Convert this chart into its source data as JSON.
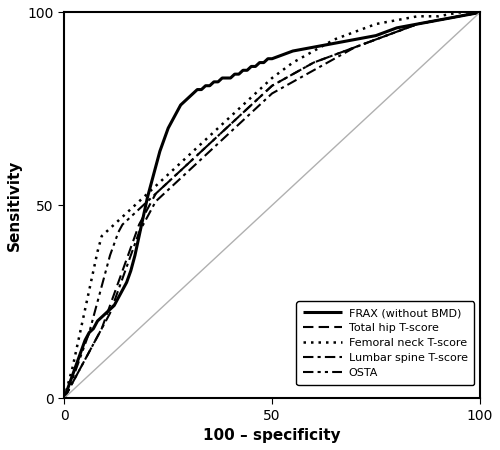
{
  "title": "",
  "xlabel": "100 – specificity",
  "ylabel": "Sensitivity",
  "xlim": [
    0,
    100
  ],
  "ylim": [
    0,
    100
  ],
  "xticks": [
    0,
    50,
    100
  ],
  "yticks": [
    0,
    50,
    100
  ],
  "background_color": "#ffffff",
  "curves": {
    "FRAX (without BMD)": {
      "style": "solid",
      "linewidth": 2.0,
      "color": "#000000",
      "points": [
        [
          0,
          0
        ],
        [
          1,
          3
        ],
        [
          2,
          6
        ],
        [
          3,
          9
        ],
        [
          4,
          12
        ],
        [
          5,
          15
        ],
        [
          6,
          17
        ],
        [
          7,
          18
        ],
        [
          8,
          20
        ],
        [
          9,
          21
        ],
        [
          10,
          22
        ],
        [
          11,
          23
        ],
        [
          12,
          24
        ],
        [
          13,
          26
        ],
        [
          14,
          28
        ],
        [
          15,
          30
        ],
        [
          16,
          33
        ],
        [
          17,
          37
        ],
        [
          18,
          42
        ],
        [
          19,
          47
        ],
        [
          20,
          52
        ],
        [
          21,
          56
        ],
        [
          22,
          60
        ],
        [
          23,
          64
        ],
        [
          24,
          67
        ],
        [
          25,
          70
        ],
        [
          26,
          72
        ],
        [
          27,
          74
        ],
        [
          28,
          76
        ],
        [
          29,
          77
        ],
        [
          30,
          78
        ],
        [
          31,
          79
        ],
        [
          32,
          80
        ],
        [
          33,
          80
        ],
        [
          34,
          81
        ],
        [
          35,
          81
        ],
        [
          36,
          82
        ],
        [
          37,
          82
        ],
        [
          38,
          83
        ],
        [
          39,
          83
        ],
        [
          40,
          83
        ],
        [
          41,
          84
        ],
        [
          42,
          84
        ],
        [
          43,
          85
        ],
        [
          44,
          85
        ],
        [
          45,
          86
        ],
        [
          46,
          86
        ],
        [
          47,
          87
        ],
        [
          48,
          87
        ],
        [
          49,
          88
        ],
        [
          50,
          88
        ],
        [
          55,
          90
        ],
        [
          60,
          91
        ],
        [
          65,
          92
        ],
        [
          70,
          93
        ],
        [
          75,
          94
        ],
        [
          80,
          96
        ],
        [
          85,
          97
        ],
        [
          90,
          98
        ],
        [
          95,
          99
        ],
        [
          100,
          100
        ]
      ]
    },
    "Total hip T-score": {
      "style": "dashed",
      "linewidth": 1.5,
      "color": "#000000",
      "points": [
        [
          0,
          0
        ],
        [
          1,
          2
        ],
        [
          2,
          4
        ],
        [
          3,
          6
        ],
        [
          4,
          8
        ],
        [
          5,
          10
        ],
        [
          6,
          12
        ],
        [
          7,
          14
        ],
        [
          8,
          16
        ],
        [
          9,
          18
        ],
        [
          10,
          21
        ],
        [
          11,
          24
        ],
        [
          12,
          27
        ],
        [
          13,
          30
        ],
        [
          14,
          33
        ],
        [
          15,
          36
        ],
        [
          16,
          39
        ],
        [
          17,
          42
        ],
        [
          18,
          45
        ],
        [
          19,
          47
        ],
        [
          20,
          49
        ],
        [
          21,
          51
        ],
        [
          22,
          53
        ],
        [
          23,
          54
        ],
        [
          24,
          55
        ],
        [
          25,
          56
        ],
        [
          26,
          57
        ],
        [
          27,
          58
        ],
        [
          28,
          59
        ],
        [
          29,
          60
        ],
        [
          30,
          61
        ],
        [
          31,
          62
        ],
        [
          32,
          63
        ],
        [
          33,
          64
        ],
        [
          34,
          65
        ],
        [
          35,
          66
        ],
        [
          36,
          67
        ],
        [
          37,
          68
        ],
        [
          38,
          69
        ],
        [
          39,
          70
        ],
        [
          40,
          71
        ],
        [
          41,
          72
        ],
        [
          42,
          73
        ],
        [
          43,
          74
        ],
        [
          44,
          75
        ],
        [
          45,
          76
        ],
        [
          46,
          77
        ],
        [
          47,
          78
        ],
        [
          48,
          79
        ],
        [
          49,
          80
        ],
        [
          50,
          81
        ],
        [
          55,
          84
        ],
        [
          60,
          87
        ],
        [
          65,
          89
        ],
        [
          70,
          91
        ],
        [
          75,
          93
        ],
        [
          80,
          95
        ],
        [
          85,
          97
        ],
        [
          90,
          98
        ],
        [
          95,
          99
        ],
        [
          100,
          100
        ]
      ]
    },
    "Femoral neck T-score": {
      "style": "dotted",
      "linewidth": 1.8,
      "color": "#000000",
      "points": [
        [
          0,
          0
        ],
        [
          1,
          4
        ],
        [
          2,
          8
        ],
        [
          3,
          13
        ],
        [
          4,
          18
        ],
        [
          5,
          23
        ],
        [
          6,
          28
        ],
        [
          7,
          33
        ],
        [
          8,
          38
        ],
        [
          9,
          42
        ],
        [
          10,
          43
        ],
        [
          11,
          44
        ],
        [
          12,
          45
        ],
        [
          13,
          46
        ],
        [
          14,
          47
        ],
        [
          15,
          48
        ],
        [
          16,
          49
        ],
        [
          17,
          50
        ],
        [
          18,
          51
        ],
        [
          19,
          52
        ],
        [
          20,
          53
        ],
        [
          21,
          54
        ],
        [
          22,
          55
        ],
        [
          23,
          56
        ],
        [
          24,
          57
        ],
        [
          25,
          58
        ],
        [
          26,
          59
        ],
        [
          27,
          60
        ],
        [
          28,
          61
        ],
        [
          29,
          62
        ],
        [
          30,
          63
        ],
        [
          31,
          64
        ],
        [
          32,
          65
        ],
        [
          33,
          66
        ],
        [
          34,
          67
        ],
        [
          35,
          68
        ],
        [
          36,
          69
        ],
        [
          37,
          70
        ],
        [
          38,
          71
        ],
        [
          39,
          72
        ],
        [
          40,
          73
        ],
        [
          41,
          74
        ],
        [
          42,
          75
        ],
        [
          43,
          76
        ],
        [
          44,
          77
        ],
        [
          45,
          78
        ],
        [
          46,
          79
        ],
        [
          47,
          80
        ],
        [
          48,
          81
        ],
        [
          49,
          82
        ],
        [
          50,
          83
        ],
        [
          55,
          87
        ],
        [
          60,
          90
        ],
        [
          65,
          93
        ],
        [
          70,
          95
        ],
        [
          75,
          97
        ],
        [
          80,
          98
        ],
        [
          85,
          99
        ],
        [
          90,
          99
        ],
        [
          95,
          100
        ],
        [
          100,
          100
        ]
      ]
    },
    "Lumbar spine T-score": {
      "style": "dashdot",
      "linewidth": 1.5,
      "color": "#000000",
      "points": [
        [
          0,
          0
        ],
        [
          1,
          2
        ],
        [
          2,
          4
        ],
        [
          3,
          6
        ],
        [
          4,
          8
        ],
        [
          5,
          10
        ],
        [
          6,
          12
        ],
        [
          7,
          14
        ],
        [
          8,
          16
        ],
        [
          9,
          18
        ],
        [
          10,
          20
        ],
        [
          11,
          22
        ],
        [
          12,
          25
        ],
        [
          13,
          28
        ],
        [
          14,
          31
        ],
        [
          15,
          34
        ],
        [
          16,
          37
        ],
        [
          17,
          40
        ],
        [
          18,
          43
        ],
        [
          19,
          45
        ],
        [
          20,
          47
        ],
        [
          21,
          49
        ],
        [
          22,
          51
        ],
        [
          23,
          52
        ],
        [
          24,
          53
        ],
        [
          25,
          54
        ],
        [
          26,
          55
        ],
        [
          27,
          56
        ],
        [
          28,
          57
        ],
        [
          29,
          58
        ],
        [
          30,
          59
        ],
        [
          31,
          60
        ],
        [
          32,
          61
        ],
        [
          33,
          62
        ],
        [
          34,
          63
        ],
        [
          35,
          64
        ],
        [
          36,
          65
        ],
        [
          37,
          66
        ],
        [
          38,
          67
        ],
        [
          39,
          68
        ],
        [
          40,
          69
        ],
        [
          41,
          70
        ],
        [
          42,
          71
        ],
        [
          43,
          72
        ],
        [
          44,
          73
        ],
        [
          45,
          74
        ],
        [
          46,
          75
        ],
        [
          47,
          76
        ],
        [
          48,
          77
        ],
        [
          49,
          78
        ],
        [
          50,
          79
        ],
        [
          55,
          82
        ],
        [
          60,
          85
        ],
        [
          65,
          88
        ],
        [
          70,
          91
        ],
        [
          75,
          93
        ],
        [
          80,
          95
        ],
        [
          85,
          97
        ],
        [
          90,
          98
        ],
        [
          95,
          99
        ],
        [
          100,
          100
        ]
      ]
    },
    "OSTA": {
      "style": "dashdotdotted",
      "linewidth": 1.5,
      "color": "#000000",
      "points": [
        [
          0,
          0
        ],
        [
          1,
          2
        ],
        [
          2,
          5
        ],
        [
          3,
          8
        ],
        [
          4,
          11
        ],
        [
          5,
          14
        ],
        [
          6,
          17
        ],
        [
          7,
          21
        ],
        [
          8,
          25
        ],
        [
          9,
          29
        ],
        [
          10,
          33
        ],
        [
          11,
          37
        ],
        [
          12,
          40
        ],
        [
          13,
          43
        ],
        [
          14,
          45
        ],
        [
          15,
          46
        ],
        [
          16,
          47
        ],
        [
          17,
          48
        ],
        [
          18,
          49
        ],
        [
          19,
          50
        ],
        [
          20,
          51
        ],
        [
          21,
          52
        ],
        [
          22,
          53
        ],
        [
          23,
          54
        ],
        [
          24,
          55
        ],
        [
          25,
          56
        ],
        [
          26,
          57
        ],
        [
          27,
          58
        ],
        [
          28,
          59
        ],
        [
          29,
          60
        ],
        [
          30,
          61
        ],
        [
          31,
          62
        ],
        [
          32,
          63
        ],
        [
          33,
          64
        ],
        [
          34,
          65
        ],
        [
          35,
          66
        ],
        [
          36,
          67
        ],
        [
          37,
          68
        ],
        [
          38,
          69
        ],
        [
          39,
          70
        ],
        [
          40,
          71
        ],
        [
          41,
          72
        ],
        [
          42,
          73
        ],
        [
          43,
          74
        ],
        [
          44,
          75
        ],
        [
          45,
          76
        ],
        [
          46,
          77
        ],
        [
          47,
          78
        ],
        [
          48,
          79
        ],
        [
          49,
          80
        ],
        [
          50,
          81
        ],
        [
          55,
          84
        ],
        [
          60,
          87
        ],
        [
          65,
          89
        ],
        [
          70,
          91
        ],
        [
          75,
          93
        ],
        [
          80,
          95
        ],
        [
          85,
          97
        ],
        [
          90,
          98
        ],
        [
          95,
          99
        ],
        [
          100,
          100
        ]
      ]
    }
  },
  "legend_labels": [
    "FRAX (without BMD)",
    "Total hip T-score",
    "Femoral neck T-score",
    "Lumbar spine T-score",
    "OSTA"
  ]
}
